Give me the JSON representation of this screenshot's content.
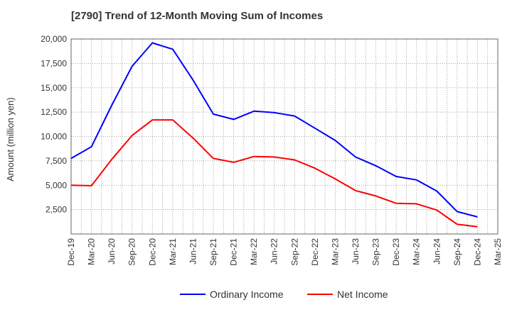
{
  "chart_data": {
    "type": "line",
    "title": "[2790]  Trend of 12-Month Moving Sum of Incomes",
    "xlabel": "",
    "ylabel": "Amount (million yen)",
    "ylim": [
      0,
      20000
    ],
    "yticks": [
      2500,
      5000,
      7500,
      10000,
      12500,
      15000,
      17500,
      20000
    ],
    "ytick_labels": [
      "2,500",
      "5,000",
      "7,500",
      "10,000",
      "12,500",
      "15,000",
      "17,500",
      "20,000"
    ],
    "categories": [
      "Dec-19",
      "Mar-20",
      "Jun-20",
      "Sep-20",
      "Dec-20",
      "Mar-21",
      "Jun-21",
      "Sep-21",
      "Dec-21",
      "Mar-22",
      "Jun-22",
      "Sep-22",
      "Dec-22",
      "Mar-23",
      "Jun-23",
      "Sep-23",
      "Dec-23",
      "Mar-24",
      "Jun-24",
      "Sep-24",
      "Dec-24",
      "Mar-25"
    ],
    "grid": true,
    "legend_position": "bottom",
    "series": [
      {
        "name": "Ordinary Income",
        "color": "#0000ff",
        "values": [
          7750,
          8950,
          13200,
          17200,
          19600,
          18950,
          15800,
          12300,
          11750,
          12600,
          12450,
          12100,
          10850,
          9600,
          7900,
          7000,
          5900,
          5550,
          4400,
          2300,
          1750,
          null
        ]
      },
      {
        "name": "Net Income",
        "color": "#ff0000",
        "values": [
          5000,
          4950,
          7650,
          10100,
          11700,
          11700,
          9850,
          7750,
          7350,
          7950,
          7900,
          7600,
          6750,
          5650,
          4450,
          3900,
          3150,
          3100,
          2450,
          1000,
          750,
          null
        ]
      }
    ]
  }
}
